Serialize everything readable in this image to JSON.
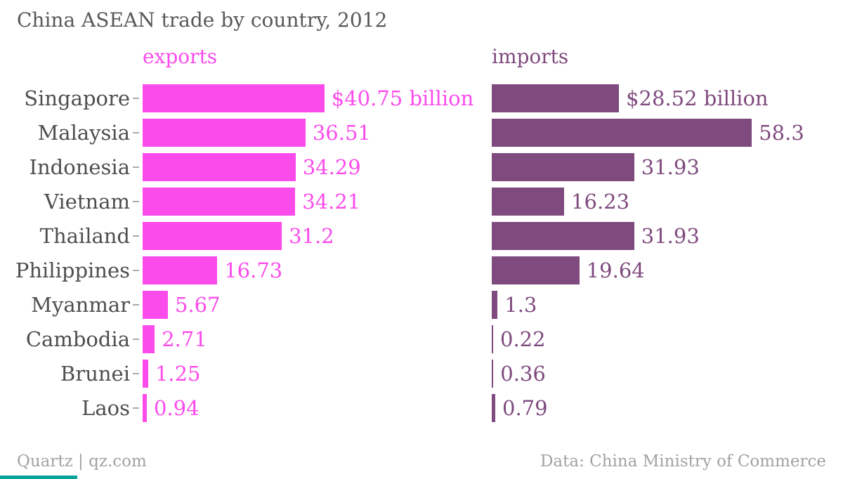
{
  "header": {
    "title": "China ASEAN trade by country, 2012"
  },
  "chart_data": {
    "type": "bar",
    "orientation": "horizontal",
    "title": "China ASEAN trade by country, 2012",
    "categories": [
      "Singapore",
      "Malaysia",
      "Indonesia",
      "Vietnam",
      "Thailand",
      "Philippines",
      "Myanmar",
      "Cambodia",
      "Brunei",
      "Laos"
    ],
    "series": [
      {
        "name": "exports",
        "color": "#fb4beb",
        "values": [
          40.75,
          36.51,
          34.29,
          34.21,
          31.2,
          16.73,
          5.67,
          2.71,
          1.25,
          0.94
        ],
        "value_labels": [
          "$40.75 billion",
          "36.51",
          "34.29",
          "34.21",
          "31.2",
          "16.73",
          "5.67",
          "2.71",
          "1.25",
          "0.94"
        ]
      },
      {
        "name": "imports",
        "color": "#7f4a7e",
        "values": [
          28.52,
          58.3,
          31.93,
          16.23,
          31.93,
          19.64,
          1.3,
          0.22,
          0.36,
          0.79
        ],
        "value_labels": [
          "$28.52 billion",
          "58.3",
          "31.93",
          "16.23",
          "31.93",
          "19.64",
          "1.3",
          "0.22",
          "0.36",
          "0.79"
        ]
      }
    ],
    "unit_hint": "billion",
    "xlim": [
      0,
      58.3
    ],
    "grid": false,
    "legend_position": "column-headers"
  },
  "footer": {
    "credit": "Quartz | qz.com",
    "source": "Data: China Ministry of Commerce"
  },
  "colors": {
    "exports": "#fb4beb",
    "imports": "#7f4a7e",
    "title_text": "#59585b",
    "category_text": "#4e4d50",
    "tick": "#aaaaaa",
    "footer_text": "#a2a2a4",
    "brand_teal": "#0ba29c"
  }
}
